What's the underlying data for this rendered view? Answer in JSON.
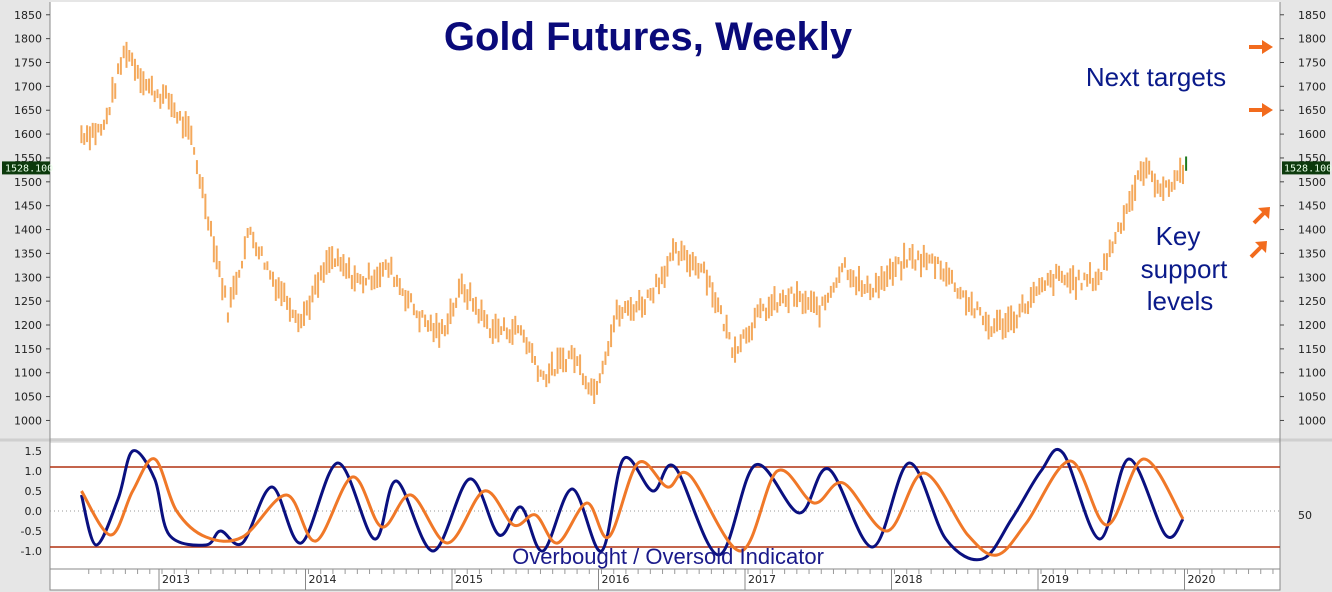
{
  "chart_data": [
    {
      "type": "bar",
      "title": "Gold Futures, Weekly",
      "subtype": "ohlc",
      "frequency": "weekly",
      "ylim": [
        980,
        1860
      ],
      "yticks": [
        "1850",
        "1800",
        "1750",
        "1700",
        "1650",
        "1600",
        "1550",
        "1500",
        "1450",
        "1400",
        "1350",
        "1300",
        "1250",
        "1200",
        "1150",
        "1100",
        "1050",
        "1000"
      ],
      "x_labels": [
        "2013",
        "2014",
        "2015",
        "2016",
        "2017",
        "2018",
        "2019",
        "2020"
      ],
      "last_price": "1528.100",
      "bar_color": "#f4a95c",
      "last_bar_color": "#1f7a1f",
      "price_path": [
        {
          "year": 2012.45,
          "price": 1600
        },
        {
          "year": 2012.6,
          "price": 1610
        },
        {
          "year": 2012.75,
          "price": 1780
        },
        {
          "year": 2012.9,
          "price": 1700
        },
        {
          "year": 2013.05,
          "price": 1670
        },
        {
          "year": 2013.2,
          "price": 1590
        },
        {
          "year": 2013.3,
          "price": 1450
        },
        {
          "year": 2013.45,
          "price": 1230
        },
        {
          "year": 2013.6,
          "price": 1400
        },
        {
          "year": 2013.75,
          "price": 1300
        },
        {
          "year": 2013.95,
          "price": 1210
        },
        {
          "year": 2014.15,
          "price": 1340
        },
        {
          "year": 2014.35,
          "price": 1290
        },
        {
          "year": 2014.55,
          "price": 1320
        },
        {
          "year": 2014.75,
          "price": 1220
        },
        {
          "year": 2014.9,
          "price": 1180
        },
        {
          "year": 2015.05,
          "price": 1280
        },
        {
          "year": 2015.25,
          "price": 1190
        },
        {
          "year": 2015.45,
          "price": 1190
        },
        {
          "year": 2015.6,
          "price": 1090
        },
        {
          "year": 2015.8,
          "price": 1140
        },
        {
          "year": 2015.95,
          "price": 1060
        },
        {
          "year": 2016.1,
          "price": 1220
        },
        {
          "year": 2016.3,
          "price": 1250
        },
        {
          "year": 2016.5,
          "price": 1350
        },
        {
          "year": 2016.7,
          "price": 1320
        },
        {
          "year": 2016.9,
          "price": 1150
        },
        {
          "year": 2017.1,
          "price": 1230
        },
        {
          "year": 2017.3,
          "price": 1260
        },
        {
          "year": 2017.5,
          "price": 1230
        },
        {
          "year": 2017.65,
          "price": 1330
        },
        {
          "year": 2017.8,
          "price": 1270
        },
        {
          "year": 2017.95,
          "price": 1300
        },
        {
          "year": 2018.1,
          "price": 1340
        },
        {
          "year": 2018.3,
          "price": 1330
        },
        {
          "year": 2018.5,
          "price": 1250
        },
        {
          "year": 2018.65,
          "price": 1195
        },
        {
          "year": 2018.8,
          "price": 1210
        },
        {
          "year": 2018.95,
          "price": 1260
        },
        {
          "year": 2019.1,
          "price": 1300
        },
        {
          "year": 2019.25,
          "price": 1290
        },
        {
          "year": 2019.4,
          "price": 1300
        },
        {
          "year": 2019.55,
          "price": 1420
        },
        {
          "year": 2019.7,
          "price": 1530
        },
        {
          "year": 2019.85,
          "price": 1480
        },
        {
          "year": 2019.97,
          "price": 1528
        }
      ]
    },
    {
      "type": "line",
      "title": "Overbought / Oversold Indicator",
      "ylim": [
        -1.45,
        1.7
      ],
      "yticks": [
        "1.5",
        "1.0",
        "0.5",
        "0.0",
        "-0.5",
        "-1.0"
      ],
      "right_axis_label": "50",
      "overbought_level": 1.1,
      "oversold_level": -0.9,
      "series": [
        {
          "color": "#0a1080",
          "points": [
            {
              "year": 2012.45,
              "value": 0.4
            },
            {
              "year": 2012.55,
              "value": -0.85
            },
            {
              "year": 2012.7,
              "value": 0.3
            },
            {
              "year": 2012.8,
              "value": 1.5
            },
            {
              "year": 2012.95,
              "value": 0.8
            },
            {
              "year": 2013.05,
              "value": -0.6
            },
            {
              "year": 2013.3,
              "value": -0.85
            },
            {
              "year": 2013.4,
              "value": -0.5
            },
            {
              "year": 2013.55,
              "value": -0.8
            },
            {
              "year": 2013.75,
              "value": 0.6
            },
            {
              "year": 2013.95,
              "value": -0.8
            },
            {
              "year": 2014.2,
              "value": 1.2
            },
            {
              "year": 2014.45,
              "value": -0.7
            },
            {
              "year": 2014.6,
              "value": 0.75
            },
            {
              "year": 2014.85,
              "value": -1.0
            },
            {
              "year": 2015.1,
              "value": 0.8
            },
            {
              "year": 2015.3,
              "value": -0.6
            },
            {
              "year": 2015.45,
              "value": 0.1
            },
            {
              "year": 2015.6,
              "value": -1.0
            },
            {
              "year": 2015.8,
              "value": 0.55
            },
            {
              "year": 2016.0,
              "value": -1.0
            },
            {
              "year": 2016.15,
              "value": 1.3
            },
            {
              "year": 2016.35,
              "value": 0.5
            },
            {
              "year": 2016.5,
              "value": 1.1
            },
            {
              "year": 2016.8,
              "value": -1.1
            },
            {
              "year": 2017.05,
              "value": 1.15
            },
            {
              "year": 2017.35,
              "value": -0.05
            },
            {
              "year": 2017.55,
              "value": 1.05
            },
            {
              "year": 2017.85,
              "value": -0.9
            },
            {
              "year": 2018.1,
              "value": 1.2
            },
            {
              "year": 2018.35,
              "value": -0.7
            },
            {
              "year": 2018.6,
              "value": -1.2
            },
            {
              "year": 2018.8,
              "value": -0.2
            },
            {
              "year": 2019.0,
              "value": 1.0
            },
            {
              "year": 2019.15,
              "value": 1.45
            },
            {
              "year": 2019.4,
              "value": -0.7
            },
            {
              "year": 2019.6,
              "value": 1.3
            },
            {
              "year": 2019.85,
              "value": -0.6
            },
            {
              "year": 2019.97,
              "value": -0.2
            }
          ]
        },
        {
          "color": "#f07828",
          "points": [
            {
              "year": 2012.45,
              "value": 0.5
            },
            {
              "year": 2012.65,
              "value": -0.6
            },
            {
              "year": 2012.8,
              "value": 0.5
            },
            {
              "year": 2012.95,
              "value": 1.3
            },
            {
              "year": 2013.1,
              "value": 0.0
            },
            {
              "year": 2013.3,
              "value": -0.65
            },
            {
              "year": 2013.55,
              "value": -0.65
            },
            {
              "year": 2013.85,
              "value": 0.4
            },
            {
              "year": 2014.05,
              "value": -0.75
            },
            {
              "year": 2014.3,
              "value": 0.85
            },
            {
              "year": 2014.5,
              "value": -0.4
            },
            {
              "year": 2014.7,
              "value": 0.4
            },
            {
              "year": 2014.95,
              "value": -0.8
            },
            {
              "year": 2015.2,
              "value": 0.5
            },
            {
              "year": 2015.4,
              "value": -0.35
            },
            {
              "year": 2015.55,
              "value": -0.1
            },
            {
              "year": 2015.7,
              "value": -0.8
            },
            {
              "year": 2015.9,
              "value": 0.2
            },
            {
              "year": 2016.05,
              "value": -0.65
            },
            {
              "year": 2016.25,
              "value": 1.2
            },
            {
              "year": 2016.45,
              "value": 0.6
            },
            {
              "year": 2016.6,
              "value": 0.9
            },
            {
              "year": 2016.95,
              "value": -1.0
            },
            {
              "year": 2017.2,
              "value": 1.0
            },
            {
              "year": 2017.45,
              "value": 0.2
            },
            {
              "year": 2017.65,
              "value": 0.7
            },
            {
              "year": 2017.95,
              "value": -0.5
            },
            {
              "year": 2018.2,
              "value": 0.95
            },
            {
              "year": 2018.5,
              "value": -0.6
            },
            {
              "year": 2018.7,
              "value": -1.1
            },
            {
              "year": 2018.9,
              "value": -0.3
            },
            {
              "year": 2019.2,
              "value": 1.25
            },
            {
              "year": 2019.45,
              "value": -0.35
            },
            {
              "year": 2019.7,
              "value": 1.3
            },
            {
              "year": 2019.97,
              "value": -0.2
            }
          ]
        }
      ]
    }
  ],
  "annotations": {
    "next_targets": "Next targets",
    "key_support_1": "Key",
    "key_support_2": "support",
    "key_support_3": "levels",
    "arrow_color": "#f26b1d"
  },
  "colors": {
    "title": "#0a0a7a",
    "panel_bg": "#ffffff",
    "frame_bg": "#e6e6e6",
    "indicator_level_line": "#b03010",
    "price_badge_bg": "#0c3a0c"
  }
}
